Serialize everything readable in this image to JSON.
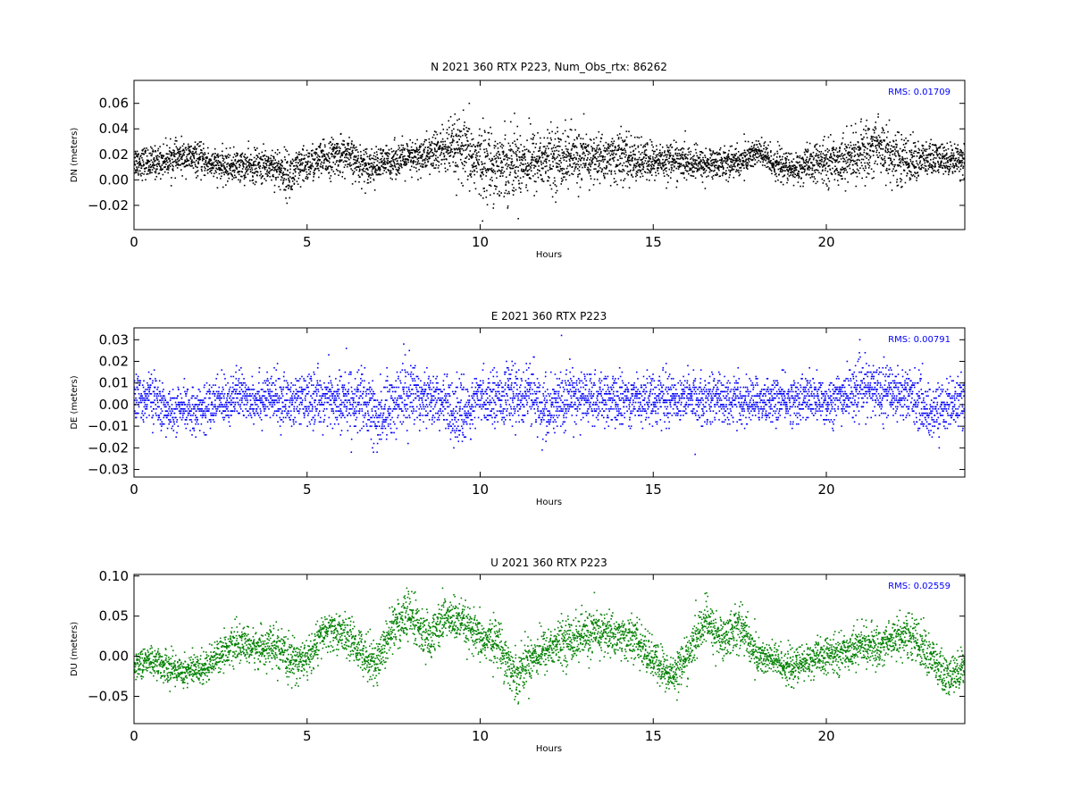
{
  "chart_data": [
    {
      "type": "scatter",
      "title": "N 2021 360 RTX  P223, Num_Obs_rtx: 86262",
      "xlabel": "Hours",
      "ylabel": "DN (meters)",
      "xlim": [
        0,
        24
      ],
      "ylim": [
        -0.039,
        0.078
      ],
      "xticks": [
        0,
        5,
        10,
        15,
        20
      ],
      "xtick_labels": [
        "0",
        "5",
        "10",
        "15",
        "20"
      ],
      "yticks": [
        -0.02,
        0.0,
        0.02,
        0.04,
        0.06
      ],
      "ytick_labels": [
        "−0.02",
        "0.00",
        "0.02",
        "0.04",
        "0.06"
      ],
      "annotation": "RMS:  0.01709",
      "rms": 0.01709,
      "color": "#000000",
      "grid": false,
      "envelope": {
        "x": [
          0,
          0.5,
          1,
          1.5,
          2,
          2.5,
          3,
          3.5,
          4,
          4.5,
          5,
          5.5,
          6,
          6.5,
          7,
          7.5,
          8,
          8.5,
          9,
          9.5,
          10,
          10.5,
          11,
          11.5,
          12,
          12.5,
          13,
          13.5,
          14,
          14.5,
          15,
          15.5,
          16,
          16.5,
          17,
          17.5,
          18,
          18.5,
          19,
          19.5,
          20,
          20.5,
          21,
          21.5,
          22,
          22.5,
          23,
          23.5,
          24
        ],
        "center": [
          0.015,
          0.013,
          0.016,
          0.018,
          0.015,
          0.01,
          0.011,
          0.01,
          0.012,
          0.003,
          0.012,
          0.016,
          0.02,
          0.013,
          0.011,
          0.016,
          0.016,
          0.02,
          0.024,
          0.022,
          0.014,
          0.012,
          0.014,
          0.015,
          0.016,
          0.018,
          0.016,
          0.017,
          0.018,
          0.015,
          0.014,
          0.016,
          0.013,
          0.012,
          0.014,
          0.014,
          0.022,
          0.013,
          0.008,
          0.012,
          0.014,
          0.016,
          0.02,
          0.028,
          0.016,
          0.015,
          0.016,
          0.016,
          0.017
        ],
        "spread": [
          0.012,
          0.012,
          0.012,
          0.012,
          0.012,
          0.012,
          0.012,
          0.013,
          0.014,
          0.018,
          0.014,
          0.014,
          0.015,
          0.014,
          0.013,
          0.013,
          0.014,
          0.015,
          0.02,
          0.025,
          0.028,
          0.026,
          0.027,
          0.024,
          0.022,
          0.024,
          0.02,
          0.018,
          0.02,
          0.017,
          0.015,
          0.014,
          0.013,
          0.012,
          0.012,
          0.012,
          0.012,
          0.012,
          0.012,
          0.014,
          0.016,
          0.018,
          0.02,
          0.024,
          0.02,
          0.016,
          0.014,
          0.012,
          0.012
        ]
      }
    },
    {
      "type": "scatter",
      "title": "E 2021 360 RTX  P223",
      "xlabel": "Hours",
      "ylabel": "DE (meters)",
      "xlim": [
        0,
        24
      ],
      "ylim": [
        -0.0335,
        0.0355
      ],
      "xticks": [
        0,
        5,
        10,
        15,
        20
      ],
      "xtick_labels": [
        "0",
        "5",
        "10",
        "15",
        "20"
      ],
      "yticks": [
        -0.03,
        -0.02,
        -0.01,
        0.0,
        0.01,
        0.02,
        0.03
      ],
      "ytick_labels": [
        "−0.03",
        "−0.02",
        "−0.01",
        "0.00",
        "0.01",
        "0.02",
        "0.03"
      ],
      "annotation": "RMS:  0.00791",
      "rms": 0.00791,
      "color": "#0000ff",
      "grid": false,
      "envelope": {
        "x": [
          0,
          0.5,
          1,
          1.5,
          2,
          2.5,
          3,
          3.5,
          4,
          4.5,
          5,
          5.5,
          6,
          6.5,
          7,
          7.5,
          8,
          8.5,
          9,
          9.5,
          10,
          10.5,
          11,
          11.5,
          12,
          12.5,
          13,
          13.5,
          14,
          14.5,
          15,
          15.5,
          16,
          16.5,
          17,
          17.5,
          18,
          18.5,
          19,
          19.5,
          20,
          20.5,
          21,
          21.5,
          22,
          22.5,
          23,
          23.5,
          24
        ],
        "center": [
          0.002,
          0.004,
          -0.004,
          -0.002,
          -0.002,
          0.002,
          0.004,
          0.003,
          0.003,
          0.001,
          0.002,
          0.003,
          0.001,
          0.002,
          -0.006,
          0.001,
          0.006,
          0.004,
          0.0,
          -0.005,
          0.003,
          0.004,
          0.004,
          0.004,
          -0.004,
          0.004,
          0.003,
          0.002,
          0.002,
          0.003,
          0.003,
          0.003,
          0.003,
          0.003,
          0.003,
          0.001,
          0.002,
          0.002,
          0.002,
          0.003,
          0.001,
          0.004,
          0.007,
          0.007,
          0.006,
          0.004,
          -0.004,
          0.0,
          0.002
        ],
        "spread": [
          0.011,
          0.011,
          0.01,
          0.01,
          0.01,
          0.011,
          0.011,
          0.011,
          0.011,
          0.012,
          0.011,
          0.012,
          0.014,
          0.014,
          0.016,
          0.014,
          0.016,
          0.012,
          0.012,
          0.014,
          0.011,
          0.012,
          0.013,
          0.013,
          0.015,
          0.014,
          0.012,
          0.011,
          0.012,
          0.011,
          0.011,
          0.011,
          0.011,
          0.011,
          0.011,
          0.011,
          0.01,
          0.01,
          0.01,
          0.011,
          0.011,
          0.011,
          0.012,
          0.012,
          0.012,
          0.012,
          0.012,
          0.011,
          0.011
        ]
      }
    },
    {
      "type": "scatter",
      "title": "U 2021 360 RTX  P223",
      "xlabel": "Hours",
      "ylabel": "DU (meters)",
      "xlim": [
        0,
        24
      ],
      "ylim": [
        -0.084,
        0.102
      ],
      "xticks": [
        0,
        5,
        10,
        15,
        20
      ],
      "xtick_labels": [
        "0",
        "5",
        "10",
        "15",
        "20"
      ],
      "yticks": [
        -0.05,
        0.0,
        0.05,
        0.1
      ],
      "ytick_labels": [
        "−0.05",
        "0.00",
        "0.05",
        "0.10"
      ],
      "annotation": "RMS:  0.02559",
      "rms": 0.02559,
      "color": "#008000",
      "grid": false,
      "envelope": {
        "x": [
          0,
          0.5,
          1,
          1.5,
          2,
          2.5,
          3,
          3.5,
          4,
          4.5,
          5,
          5.5,
          6,
          6.5,
          7,
          7.5,
          8,
          8.5,
          9,
          9.5,
          10,
          10.5,
          11,
          11.5,
          12,
          12.5,
          13,
          13.5,
          14,
          14.5,
          15,
          15.5,
          16,
          16.5,
          17,
          17.5,
          18,
          18.5,
          19,
          19.5,
          20,
          20.5,
          21,
          21.5,
          22,
          22.5,
          23,
          23.5,
          24
        ],
        "center": [
          -0.01,
          -0.005,
          -0.015,
          -0.018,
          -0.015,
          0.005,
          0.015,
          0.01,
          0.012,
          -0.005,
          -0.005,
          0.03,
          0.03,
          0.01,
          -0.01,
          0.04,
          0.05,
          0.02,
          0.05,
          0.04,
          0.02,
          0.02,
          -0.025,
          0.0,
          0.01,
          0.02,
          0.025,
          0.03,
          0.025,
          0.02,
          -0.005,
          -0.025,
          0.0,
          0.045,
          0.02,
          0.04,
          0.0,
          -0.005,
          -0.015,
          -0.005,
          0.0,
          0.005,
          0.015,
          0.01,
          0.025,
          0.025,
          0.0,
          -0.03,
          -0.01
        ],
        "spread": [
          0.018,
          0.018,
          0.02,
          0.02,
          0.02,
          0.02,
          0.022,
          0.022,
          0.024,
          0.026,
          0.024,
          0.024,
          0.024,
          0.026,
          0.028,
          0.03,
          0.032,
          0.028,
          0.026,
          0.026,
          0.026,
          0.028,
          0.03,
          0.028,
          0.026,
          0.028,
          0.03,
          0.028,
          0.026,
          0.026,
          0.026,
          0.026,
          0.024,
          0.028,
          0.026,
          0.03,
          0.024,
          0.022,
          0.022,
          0.022,
          0.022,
          0.022,
          0.024,
          0.024,
          0.026,
          0.026,
          0.028,
          0.026,
          0.022
        ]
      }
    }
  ]
}
